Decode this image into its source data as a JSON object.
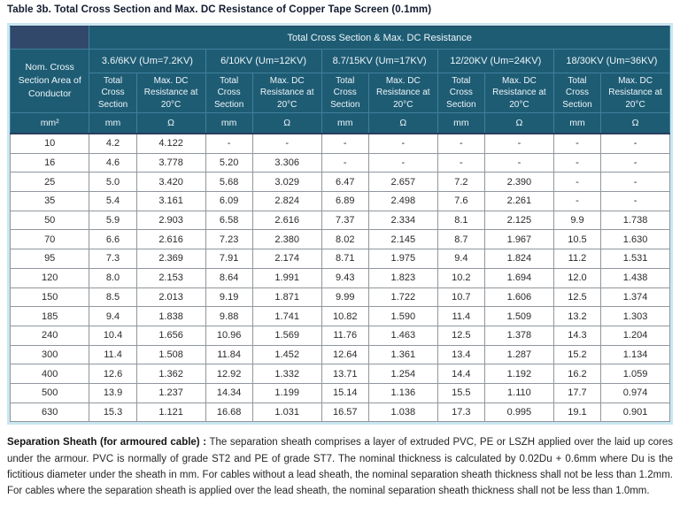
{
  "table": {
    "title": "Table 3b. Total Cross Section and Max. DC Resistance of Copper Tape Screen (0.1mm)",
    "header": {
      "band": "Total Cross Section & Max. DC Resistance",
      "row_header": "Nom. Cross Section Area of Conductor",
      "row_header_unit": "mm²",
      "groups": [
        {
          "label": "3.6/6KV (Um=7.2KV)"
        },
        {
          "label": "6/10KV (Um=12KV)"
        },
        {
          "label": "8.7/15KV (Um=17KV)"
        },
        {
          "label": "12/20KV (Um=24KV)"
        },
        {
          "label": "18/30KV (Um=36KV)"
        }
      ],
      "sub_total": "Total Cross Section",
      "sub_maxdc": "Max. DC Resistance at 20°C",
      "unit_total": "mm",
      "unit_maxdc": "Ω"
    },
    "rows": [
      {
        "size": "10",
        "values": [
          "4.2",
          "4.122",
          "-",
          "-",
          "-",
          "-",
          "-",
          "-",
          "-",
          "-"
        ]
      },
      {
        "size": "16",
        "values": [
          "4.6",
          "3.778",
          "5.20",
          "3.306",
          "-",
          "-",
          "-",
          "-",
          "-",
          "-"
        ]
      },
      {
        "size": "25",
        "values": [
          "5.0",
          "3.420",
          "5.68",
          "3.029",
          "6.47",
          "2.657",
          "7.2",
          "2.390",
          "-",
          "-"
        ]
      },
      {
        "size": "35",
        "values": [
          "5.4",
          "3.161",
          "6.09",
          "2.824",
          "6.89",
          "2.498",
          "7.6",
          "2.261",
          "-",
          "-"
        ]
      },
      {
        "size": "50",
        "values": [
          "5.9",
          "2.903",
          "6.58",
          "2.616",
          "7.37",
          "2.334",
          "8.1",
          "2.125",
          "9.9",
          "1.738"
        ]
      },
      {
        "size": "70",
        "values": [
          "6.6",
          "2.616",
          "7.23",
          "2.380",
          "8.02",
          "2.145",
          "8.7",
          "1.967",
          "10.5",
          "1.630"
        ]
      },
      {
        "size": "95",
        "values": [
          "7.3",
          "2.369",
          "7.91",
          "2.174",
          "8.71",
          "1.975",
          "9.4",
          "1.824",
          "11.2",
          "1.531"
        ]
      },
      {
        "size": "120",
        "values": [
          "8.0",
          "2.153",
          "8.64",
          "1.991",
          "9.43",
          "1.823",
          "10.2",
          "1.694",
          "12.0",
          "1.438"
        ]
      },
      {
        "size": "150",
        "values": [
          "8.5",
          "2.013",
          "9.19",
          "1.871",
          "9.99",
          "1.722",
          "10.7",
          "1.606",
          "12.5",
          "1.374"
        ]
      },
      {
        "size": "185",
        "values": [
          "9.4",
          "1.838",
          "9.88",
          "1.741",
          "10.82",
          "1.590",
          "11.4",
          "1.509",
          "13.2",
          "1.303"
        ]
      },
      {
        "size": "240",
        "values": [
          "10.4",
          "1.656",
          "10.96",
          "1.569",
          "11.76",
          "1.463",
          "12.5",
          "1.378",
          "14.3",
          "1.204"
        ]
      },
      {
        "size": "300",
        "values": [
          "11.4",
          "1.508",
          "11.84",
          "1.452",
          "12.64",
          "1.361",
          "13.4",
          "1.287",
          "15.2",
          "1.134"
        ]
      },
      {
        "size": "400",
        "values": [
          "12.6",
          "1.362",
          "12.92",
          "1.332",
          "13.71",
          "1.254",
          "14.4",
          "1.192",
          "16.2",
          "1.059"
        ]
      },
      {
        "size": "500",
        "values": [
          "13.9",
          "1.237",
          "14.34",
          "1.199",
          "15.14",
          "1.136",
          "15.5",
          "1.110",
          "17.7",
          "0.974"
        ]
      },
      {
        "size": "630",
        "values": [
          "15.3",
          "1.121",
          "16.68",
          "1.031",
          "16.57",
          "1.038",
          "17.3",
          "0.995",
          "19.1",
          "0.901"
        ]
      }
    ],
    "footnote": {
      "lead": "Separation Sheath (for armoured cable) :",
      "text": "The separation sheath comprises a layer of extruded PVC, PE or LSZH applied over the laid up cores under the armour. PVC is normally of grade ST2 and PE of grade ST7. The nominal thickness is calculated by 0.02Du + 0.6mm where Du is the fictitious diameter under the sheath in mm. For cables without a lead sheath, the nominal separation sheath thickness shall not be less than 1.2mm. For cables where the separation sheath is applied over the lead sheath, the nominal separation sheath thickness shall not be less than 1.0mm."
    },
    "colors": {
      "header_teal": "#1e5c74",
      "corner_navy": "#32486a",
      "header_grid": "#3f809c",
      "outer_border": "#c9e7f1",
      "data_grid": "#90979c"
    }
  }
}
